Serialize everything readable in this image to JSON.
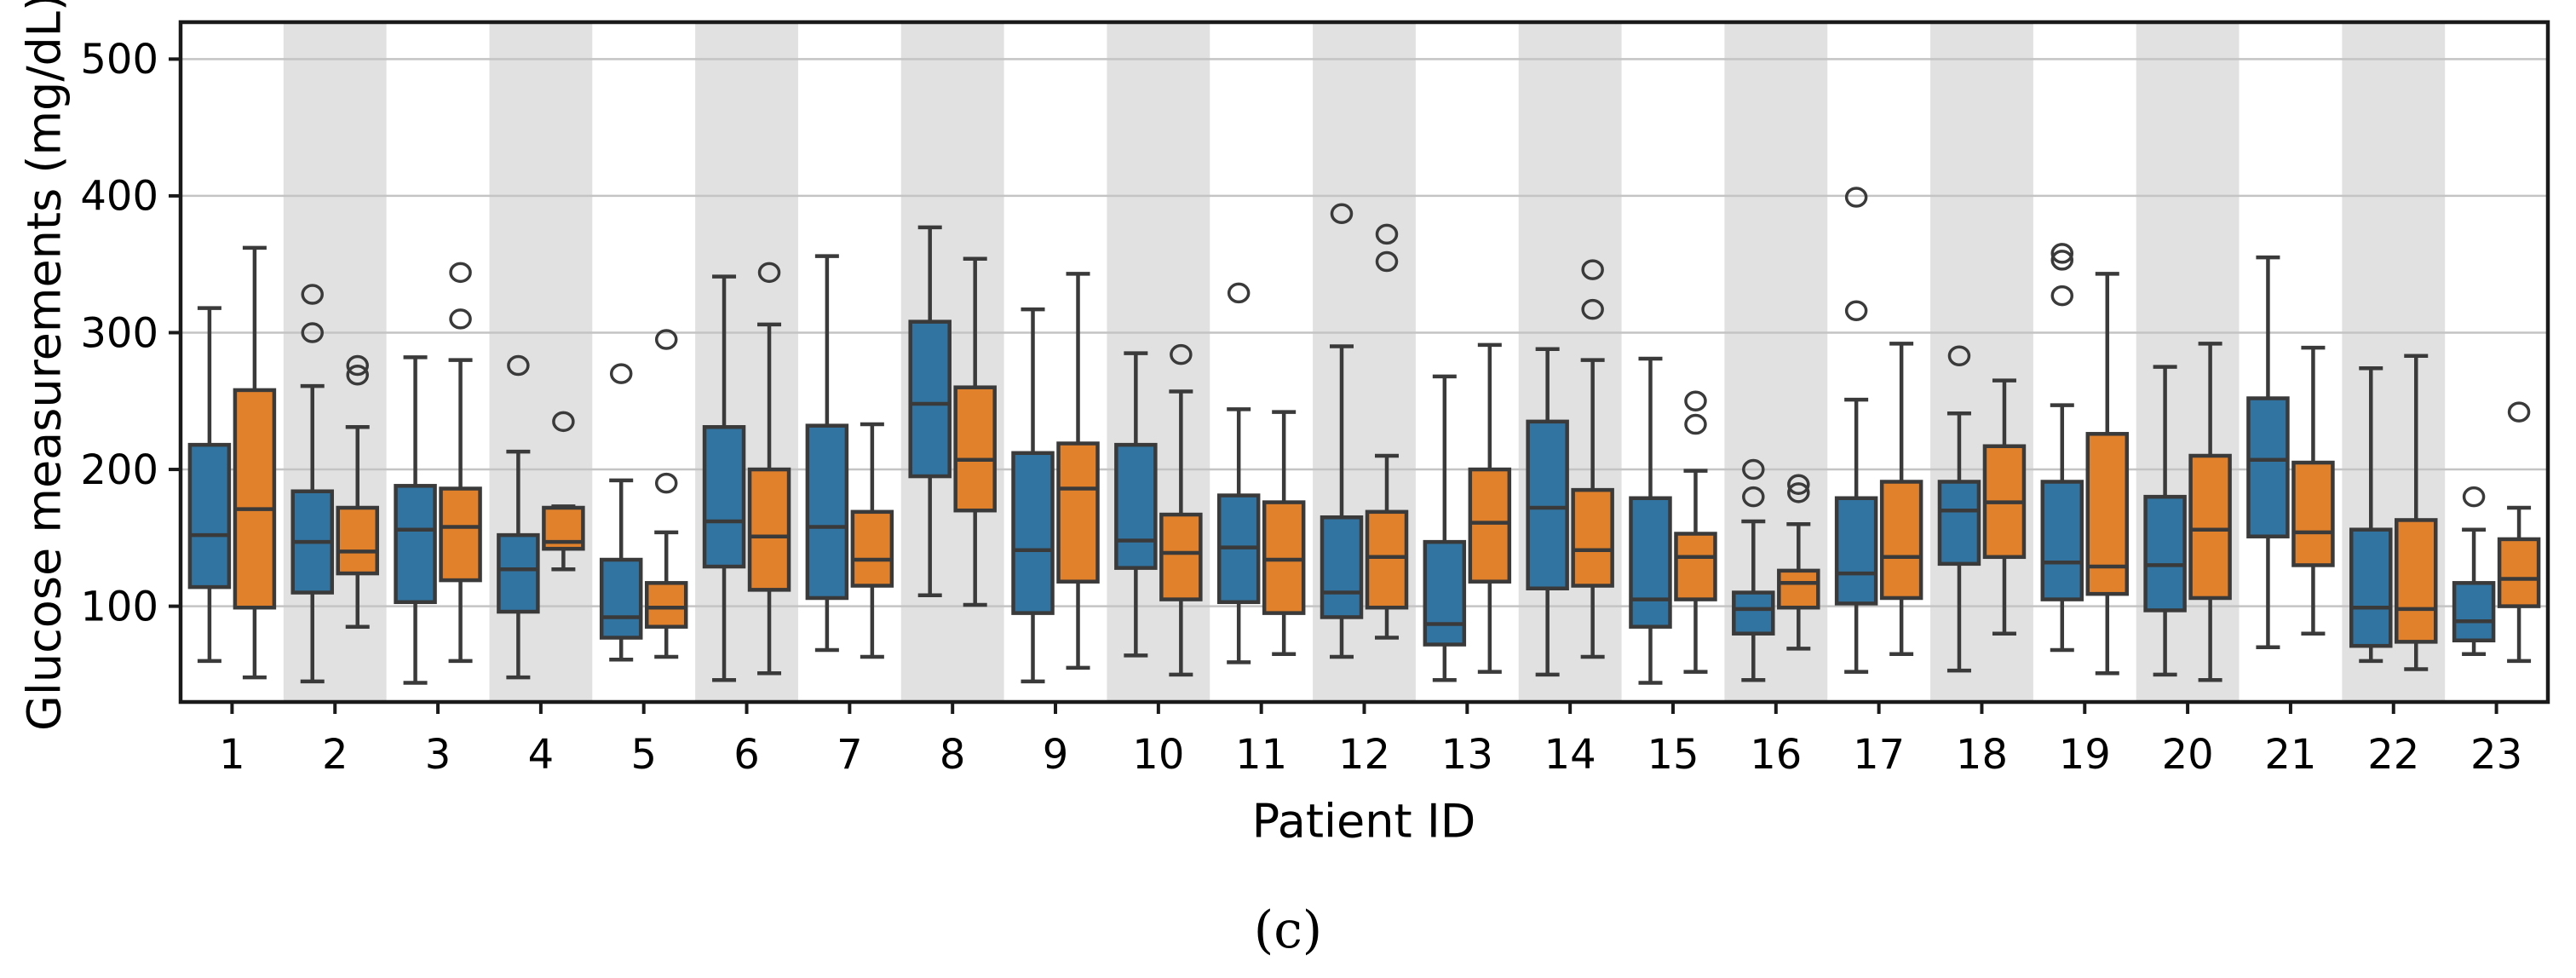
{
  "chart_data": {
    "type": "boxplot",
    "title": "",
    "xlabel": "Patient ID",
    "ylabel": "Glucose measurements (mg/dL)",
    "caption": "(c)",
    "ylim": [
      30,
      527
    ],
    "yticks": [
      100,
      200,
      300,
      400,
      500
    ],
    "categories": [
      1,
      2,
      3,
      4,
      5,
      6,
      7,
      8,
      9,
      10,
      11,
      12,
      13,
      14,
      15,
      16,
      17,
      18,
      19,
      20,
      21,
      22,
      23
    ],
    "shaded_categories": [
      2,
      4,
      6,
      8,
      10,
      12,
      14,
      16,
      18,
      20,
      22
    ],
    "grid": "horizontal",
    "legend": "none",
    "series": [
      {
        "name": "series-blue",
        "color": "#3274A1",
        "boxes": [
          [
            60,
            114,
            152,
            218,
            318
          ],
          [
            45,
            110,
            147,
            184,
            261
          ],
          [
            44,
            103,
            156,
            188,
            282
          ],
          [
            48,
            96,
            127,
            152,
            213
          ],
          [
            61,
            77,
            92,
            134,
            192
          ],
          [
            46,
            129,
            162,
            231,
            341
          ],
          [
            68,
            106,
            158,
            232,
            356
          ],
          [
            108,
            195,
            248,
            308,
            377
          ],
          [
            45,
            95,
            141,
            212,
            317
          ],
          [
            64,
            128,
            148,
            218,
            285
          ],
          [
            59,
            103,
            143,
            181,
            244
          ],
          [
            63,
            92,
            110,
            165,
            290
          ],
          [
            46,
            72,
            87,
            147,
            268
          ],
          [
            50,
            113,
            172,
            235,
            288
          ],
          [
            44,
            85,
            105,
            179,
            281
          ],
          [
            46,
            80,
            98,
            110,
            162
          ],
          [
            52,
            102,
            124,
            179,
            251
          ],
          [
            53,
            131,
            170,
            191,
            241
          ],
          [
            68,
            105,
            132,
            191,
            247
          ],
          [
            50,
            97,
            130,
            180,
            275
          ],
          [
            70,
            151,
            207,
            252,
            355
          ],
          [
            60,
            71,
            99,
            156,
            274
          ],
          [
            65,
            75,
            89,
            117,
            156
          ]
        ],
        "fliers": [
          [],
          [
            300,
            328
          ],
          [],
          [
            276
          ],
          [
            270
          ],
          [],
          [],
          [],
          [],
          [],
          [
            329
          ],
          [
            387
          ],
          [],
          [],
          [],
          [
            180,
            200
          ],
          [
            316,
            399
          ],
          [
            283
          ],
          [
            327,
            353,
            358
          ],
          [],
          [],
          [],
          [
            180
          ]
        ]
      },
      {
        "name": "series-orange",
        "color": "#E1812C",
        "boxes": [
          [
            48,
            99,
            171,
            258,
            362
          ],
          [
            85,
            124,
            140,
            172,
            231
          ],
          [
            60,
            119,
            158,
            186,
            280
          ],
          [
            127,
            142,
            147,
            172,
            173
          ],
          [
            63,
            85,
            99,
            117,
            154
          ],
          [
            51,
            112,
            151,
            200,
            306
          ],
          [
            63,
            115,
            134,
            169,
            233
          ],
          [
            101,
            170,
            207,
            260,
            354
          ],
          [
            55,
            118,
            186,
            219,
            343
          ],
          [
            50,
            105,
            139,
            167,
            257
          ],
          [
            65,
            95,
            134,
            176,
            242
          ],
          [
            77,
            99,
            136,
            169,
            210
          ],
          [
            52,
            118,
            161,
            200,
            291
          ],
          [
            63,
            115,
            141,
            185,
            280
          ],
          [
            52,
            105,
            136,
            153,
            199
          ],
          [
            69,
            99,
            117,
            126,
            160
          ],
          [
            65,
            106,
            136,
            191,
            292
          ],
          [
            80,
            136,
            176,
            217,
            265
          ],
          [
            51,
            109,
            129,
            226,
            343
          ],
          [
            46,
            106,
            156,
            210,
            292
          ],
          [
            80,
            130,
            154,
            205,
            289
          ],
          [
            54,
            74,
            98,
            163,
            283
          ],
          [
            60,
            100,
            120,
            149,
            172
          ]
        ],
        "fliers": [
          [],
          [
            269,
            276
          ],
          [
            310,
            344
          ],
          [
            235
          ],
          [
            190,
            295
          ],
          [
            344
          ],
          [],
          [],
          [],
          [
            284
          ],
          [],
          [
            352,
            372
          ],
          [],
          [
            317,
            346
          ],
          [
            233,
            250
          ],
          [
            183,
            189
          ],
          [],
          [],
          [],
          [],
          [],
          [],
          [
            242
          ]
        ]
      }
    ],
    "colors": {
      "box_edge": "#3A3A3A",
      "gridline": "#C4C4C4",
      "band": "#E1E1E1",
      "spine": "#1A1A1A",
      "tick_label": "#000000",
      "background": "#FFFFFF"
    }
  }
}
